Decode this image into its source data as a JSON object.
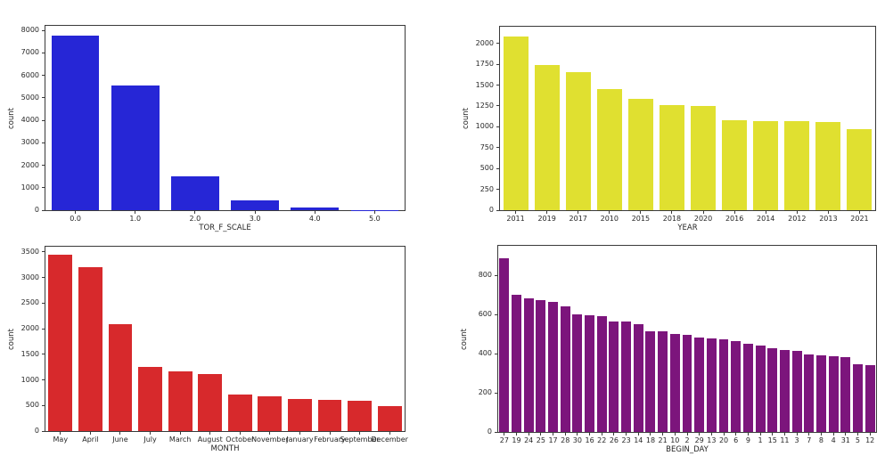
{
  "figure": {
    "background_color": "#ffffff",
    "layout": "2x2 grid of seaborn-style countplot bar charts",
    "axis_color": "#3a3a3a"
  },
  "chart_data": [
    {
      "type": "bar",
      "title": "",
      "xlabel": "TOR_F_SCALE",
      "ylabel": "count",
      "categories": [
        "0.0",
        "1.0",
        "2.0",
        "3.0",
        "4.0",
        "5.0"
      ],
      "values": [
        7780,
        5550,
        1490,
        430,
        120,
        10
      ],
      "ylim": [
        0,
        8200
      ],
      "yticks": [
        0,
        1000,
        2000,
        3000,
        4000,
        5000,
        6000,
        7000,
        8000
      ],
      "bar_color": "#2626d6",
      "grid": false,
      "legend": "none"
    },
    {
      "type": "bar",
      "title": "",
      "xlabel": "YEAR",
      "ylabel": "count",
      "categories": [
        "2011",
        "2019",
        "2017",
        "2010",
        "2015",
        "2018",
        "2020",
        "2016",
        "2014",
        "2012",
        "2013",
        "2021"
      ],
      "values": [
        2080,
        1740,
        1655,
        1455,
        1330,
        1263,
        1252,
        1083,
        1072,
        1070,
        1062,
        977
      ],
      "ylim": [
        0,
        2200
      ],
      "yticks": [
        0,
        250,
        500,
        750,
        1000,
        1250,
        1500,
        1750,
        2000
      ],
      "bar_color": "#e0e030",
      "grid": false,
      "legend": "none"
    },
    {
      "type": "bar",
      "title": "",
      "xlabel": "MONTH",
      "ylabel": "count",
      "categories": [
        "May",
        "April",
        "June",
        "July",
        "March",
        "August",
        "October",
        "November",
        "January",
        "February",
        "September",
        "December"
      ],
      "values": [
        3450,
        3200,
        2080,
        1255,
        1165,
        1105,
        720,
        680,
        625,
        610,
        595,
        490
      ],
      "ylim": [
        0,
        3600
      ],
      "yticks": [
        0,
        500,
        1000,
        1500,
        2000,
        2500,
        3000,
        3500
      ],
      "bar_color": "#d7292c",
      "grid": false,
      "legend": "none"
    },
    {
      "type": "bar",
      "title": "",
      "xlabel": "BEGIN_DAY",
      "ylabel": "count",
      "categories": [
        "27",
        "19",
        "24",
        "25",
        "17",
        "28",
        "30",
        "16",
        "22",
        "26",
        "23",
        "14",
        "18",
        "21",
        "10",
        "2",
        "29",
        "13",
        "20",
        "6",
        "9",
        "1",
        "15",
        "11",
        "3",
        "7",
        "8",
        "4",
        "31",
        "5",
        "12"
      ],
      "values": [
        886,
        700,
        680,
        675,
        662,
        640,
        600,
        595,
        590,
        565,
        562,
        552,
        515,
        512,
        502,
        494,
        482,
        478,
        472,
        462,
        448,
        443,
        427,
        420,
        413,
        396,
        389,
        388,
        381,
        346,
        343
      ],
      "ylim": [
        0,
        950
      ],
      "yticks": [
        0,
        200,
        400,
        600,
        800
      ],
      "bar_color": "#7c157c",
      "grid": false,
      "legend": "none"
    }
  ]
}
